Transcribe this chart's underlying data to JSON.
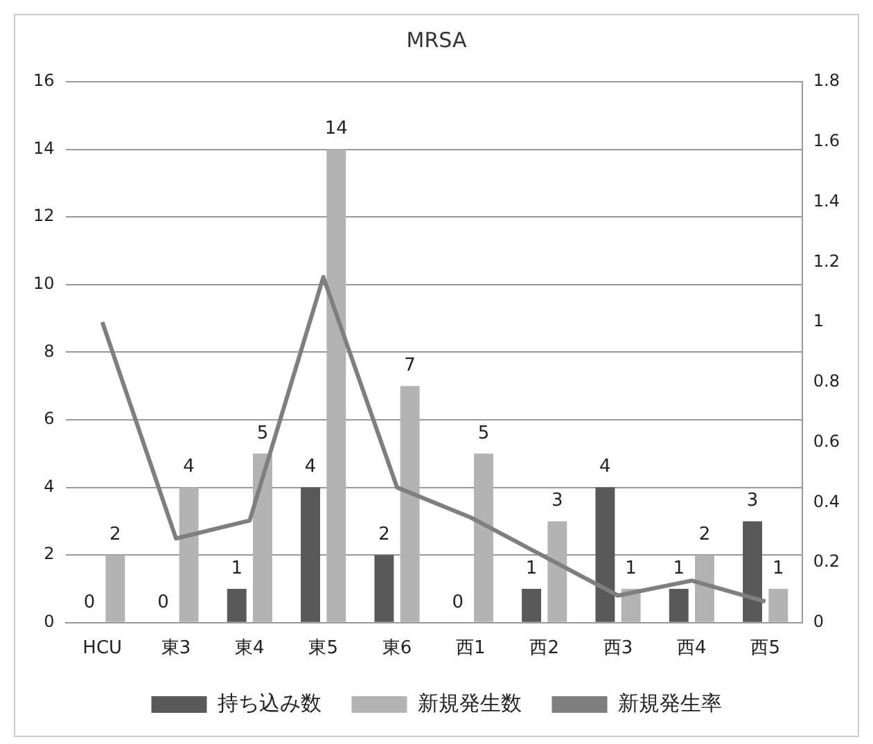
{
  "chart_data": {
    "type": "bar",
    "title": "MRSA",
    "categories": [
      "HCU",
      "東3",
      "東4",
      "東5",
      "東6",
      "西1",
      "西2",
      "西3",
      "西4",
      "西5"
    ],
    "series": [
      {
        "name": "持ち込み数",
        "color": "#595959",
        "values": [
          0,
          0,
          1,
          4,
          2,
          0,
          1,
          4,
          1,
          3
        ],
        "value_labels": [
          "0",
          "0",
          "1",
          "4",
          "2",
          "0",
          "1",
          "4",
          "1",
          "3"
        ]
      },
      {
        "name": "新規発生数",
        "color": "#b3b3b3",
        "values": [
          2,
          4,
          5,
          14,
          7,
          5,
          3,
          1,
          2,
          1
        ],
        "value_labels": [
          "2",
          "4",
          "5",
          "14",
          "7",
          "5",
          "3",
          "1",
          "2",
          "1"
        ]
      },
      {
        "name": "新規発生率",
        "type": "line",
        "axis": "y2",
        "color": "#7f7f7f",
        "values": [
          1.0,
          0.28,
          0.34,
          1.15,
          0.45,
          0.35,
          0.22,
          0.09,
          0.14,
          0.07
        ]
      }
    ],
    "ylim": [
      0,
      16
    ],
    "yticks": [
      0,
      2,
      4,
      6,
      8,
      10,
      12,
      14,
      16
    ],
    "y2lim": [
      0,
      1.8
    ],
    "y2ticks": [
      0,
      0.2,
      0.4,
      0.6,
      0.8,
      1,
      1.2,
      1.4,
      1.6,
      1.8
    ],
    "grid": "y",
    "legend": "bottom"
  }
}
